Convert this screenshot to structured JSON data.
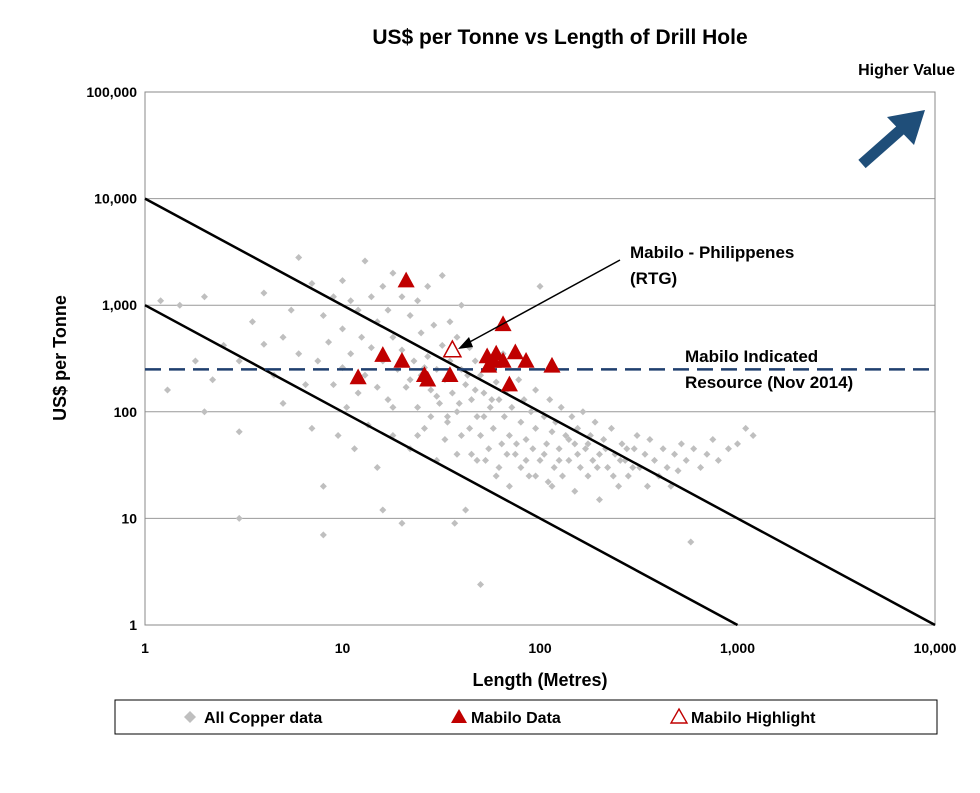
{
  "chart_data": {
    "type": "scatter",
    "title": "US$ per Tonne vs Length of Drill Hole",
    "xlabel": "Length (Metres)",
    "ylabel": "US$ per Tonne",
    "x_scale": "log",
    "y_scale": "log",
    "xlim": [
      1,
      10000
    ],
    "ylim": [
      1,
      100000
    ],
    "x_ticks": [
      "1",
      "10",
      "100",
      "1,000",
      "10,000"
    ],
    "y_ticks": [
      "1",
      "10",
      "100",
      "1,000",
      "10,000",
      "100,000"
    ],
    "grid": "horizontal",
    "legend_position": "bottom",
    "corner_label": "Higher Value",
    "series": [
      {
        "name": "All Copper data",
        "marker": "diamond",
        "color": "#bfbfbf",
        "points": [
          [
            1.2,
            1100
          ],
          [
            1.3,
            160
          ],
          [
            1.5,
            1000
          ],
          [
            1.8,
            300
          ],
          [
            2,
            1200
          ],
          [
            2,
            100
          ],
          [
            2.2,
            200
          ],
          [
            2.5,
            420
          ],
          [
            3,
            300
          ],
          [
            3,
            65
          ],
          [
            3,
            10
          ],
          [
            3.5,
            700
          ],
          [
            4,
            1300
          ],
          [
            4,
            430
          ],
          [
            4.5,
            220
          ],
          [
            5,
            500
          ],
          [
            5,
            120
          ],
          [
            5.5,
            900
          ],
          [
            6,
            2800
          ],
          [
            6,
            350
          ],
          [
            6.5,
            180
          ],
          [
            7,
            1600
          ],
          [
            7,
            70
          ],
          [
            7.5,
            300
          ],
          [
            8,
            800
          ],
          [
            8,
            20
          ],
          [
            8,
            7
          ],
          [
            8.5,
            450
          ],
          [
            9,
            1200
          ],
          [
            9,
            180
          ],
          [
            9.5,
            60
          ],
          [
            10,
            1700
          ],
          [
            10,
            600
          ],
          [
            10,
            260
          ],
          [
            10.5,
            110
          ],
          [
            11,
            1100
          ],
          [
            11,
            350
          ],
          [
            11.5,
            45
          ],
          [
            12,
            900
          ],
          [
            12,
            150
          ],
          [
            12.5,
            500
          ],
          [
            13,
            2600
          ],
          [
            13,
            220
          ],
          [
            13.5,
            75
          ],
          [
            14,
            1200
          ],
          [
            14,
            400
          ],
          [
            15,
            700
          ],
          [
            15,
            170
          ],
          [
            15,
            30
          ],
          [
            16,
            1500
          ],
          [
            16,
            300
          ],
          [
            16,
            12
          ],
          [
            17,
            900
          ],
          [
            17,
            130
          ],
          [
            18,
            2000
          ],
          [
            18,
            500
          ],
          [
            18,
            60
          ],
          [
            19,
            250
          ],
          [
            20,
            1200
          ],
          [
            20,
            380
          ],
          [
            20,
            9
          ],
          [
            21,
            170
          ],
          [
            22,
            800
          ],
          [
            22,
            45
          ],
          [
            23,
            300
          ],
          [
            24,
            1100
          ],
          [
            24,
            110
          ],
          [
            25,
            550
          ],
          [
            25,
            220
          ],
          [
            26,
            70
          ],
          [
            27,
            1500
          ],
          [
            27,
            330
          ],
          [
            28,
            160
          ],
          [
            29,
            650
          ],
          [
            30,
            250
          ],
          [
            30,
            35
          ],
          [
            31,
            120
          ],
          [
            32,
            1900
          ],
          [
            32,
            420
          ],
          [
            33,
            200
          ],
          [
            34,
            80
          ],
          [
            35,
            700
          ],
          [
            35,
            300
          ],
          [
            36,
            150
          ],
          [
            37,
            9
          ],
          [
            38,
            500
          ],
          [
            38,
            100
          ],
          [
            40,
            1000
          ],
          [
            40,
            250
          ],
          [
            40,
            60
          ],
          [
            42,
            180
          ],
          [
            42,
            12
          ],
          [
            44,
            400
          ],
          [
            45,
            130
          ],
          [
            45,
            40
          ],
          [
            47,
            300
          ],
          [
            48,
            90
          ],
          [
            50,
            220
          ],
          [
            50,
            60
          ],
          [
            50,
            2.4
          ],
          [
            52,
            150
          ],
          [
            53,
            35
          ],
          [
            55,
            280
          ],
          [
            56,
            110
          ],
          [
            58,
            70
          ],
          [
            60,
            190
          ],
          [
            60,
            25
          ],
          [
            62,
            130
          ],
          [
            64,
            50
          ],
          [
            65,
            350
          ],
          [
            66,
            90
          ],
          [
            68,
            160
          ],
          [
            70,
            60
          ],
          [
            70,
            20
          ],
          [
            72,
            110
          ],
          [
            75,
            40
          ],
          [
            78,
            200
          ],
          [
            80,
            80
          ],
          [
            80,
            30
          ],
          [
            83,
            130
          ],
          [
            85,
            55
          ],
          [
            88,
            25
          ],
          [
            90,
            100
          ],
          [
            92,
            45
          ],
          [
            95,
            160
          ],
          [
            95,
            70
          ],
          [
            100,
            35
          ],
          [
            100,
            1500
          ],
          [
            105,
            90
          ],
          [
            108,
            50
          ],
          [
            110,
            22
          ],
          [
            112,
            130
          ],
          [
            115,
            65
          ],
          [
            118,
            30
          ],
          [
            120,
            80
          ],
          [
            125,
            45
          ],
          [
            128,
            110
          ],
          [
            130,
            25
          ],
          [
            135,
            60
          ],
          [
            140,
            35
          ],
          [
            145,
            90
          ],
          [
            150,
            50
          ],
          [
            150,
            18
          ],
          [
            155,
            70
          ],
          [
            160,
            30
          ],
          [
            165,
            100
          ],
          [
            170,
            45
          ],
          [
            175,
            25
          ],
          [
            180,
            60
          ],
          [
            185,
            35
          ],
          [
            190,
            80
          ],
          [
            200,
            40
          ],
          [
            200,
            15
          ],
          [
            210,
            55
          ],
          [
            220,
            30
          ],
          [
            230,
            70
          ],
          [
            240,
            40
          ],
          [
            250,
            20
          ],
          [
            260,
            50
          ],
          [
            270,
            35
          ],
          [
            280,
            25
          ],
          [
            300,
            45
          ],
          [
            310,
            60
          ],
          [
            320,
            30
          ],
          [
            340,
            40
          ],
          [
            350,
            20
          ],
          [
            360,
            55
          ],
          [
            380,
            35
          ],
          [
            400,
            25
          ],
          [
            420,
            45
          ],
          [
            440,
            30
          ],
          [
            460,
            20
          ],
          [
            480,
            40
          ],
          [
            500,
            28
          ],
          [
            520,
            50
          ],
          [
            550,
            35
          ],
          [
            580,
            6
          ],
          [
            600,
            45
          ],
          [
            650,
            30
          ],
          [
            700,
            40
          ],
          [
            750,
            55
          ],
          [
            800,
            35
          ],
          [
            900,
            45
          ],
          [
            1000,
            50
          ],
          [
            1100,
            70
          ],
          [
            1200,
            60
          ],
          [
            24,
            60
          ],
          [
            28,
            90
          ],
          [
            33,
            55
          ],
          [
            38,
            40
          ],
          [
            44,
            70
          ],
          [
            48,
            35
          ],
          [
            55,
            45
          ],
          [
            62,
            30
          ],
          [
            68,
            40
          ],
          [
            76,
            50
          ],
          [
            85,
            35
          ],
          [
            95,
            25
          ],
          [
            105,
            40
          ],
          [
            115,
            20
          ],
          [
            125,
            35
          ],
          [
            140,
            55
          ],
          [
            155,
            40
          ],
          [
            175,
            50
          ],
          [
            195,
            30
          ],
          [
            215,
            45
          ],
          [
            235,
            25
          ],
          [
            255,
            35
          ],
          [
            275,
            45
          ],
          [
            295,
            30
          ],
          [
            18,
            110
          ],
          [
            22,
            200
          ],
          [
            26,
            260
          ],
          [
            30,
            140
          ],
          [
            34,
            90
          ],
          [
            39,
            120
          ],
          [
            43,
            220
          ],
          [
            47,
            160
          ],
          [
            52,
            90
          ],
          [
            57,
            130
          ]
        ]
      },
      {
        "name": "Mabilo Data",
        "marker": "triangle",
        "color": "#c00000",
        "points": [
          [
            12,
            210
          ],
          [
            16,
            340
          ],
          [
            20,
            300
          ],
          [
            21,
            1700
          ],
          [
            26,
            220
          ],
          [
            27,
            200
          ],
          [
            35,
            220
          ],
          [
            54,
            330
          ],
          [
            55,
            270
          ],
          [
            58,
            300
          ],
          [
            60,
            350
          ],
          [
            65,
            660
          ],
          [
            65,
            300
          ],
          [
            70,
            180
          ],
          [
            75,
            360
          ],
          [
            85,
            300
          ],
          [
            115,
            270
          ]
        ]
      },
      {
        "name": "Mabilo Highlight",
        "marker": "triangle-open",
        "color": "#c00000",
        "points": [
          [
            36,
            380
          ]
        ]
      }
    ],
    "reference_lines": [
      {
        "name": "upper-diagonal",
        "points": [
          [
            1,
            10000
          ],
          [
            10000,
            1
          ]
        ],
        "color": "#000000"
      },
      {
        "name": "lower-diagonal",
        "points": [
          [
            1,
            1000
          ],
          [
            1000,
            1
          ]
        ],
        "color": "#000000"
      },
      {
        "name": "indicated-resource",
        "y": 250,
        "style": "dashed",
        "color": "#1f3f6e"
      }
    ],
    "annotations": {
      "highlight_label_line1": "Mabilo - Philippenes",
      "highlight_label_line2": "(RTG)",
      "resource_label_line1": "Mabilo Indicated",
      "resource_label_line2": "Resource (Nov 2014)"
    }
  },
  "colors": {
    "grid": "#999999",
    "arrow": "#1f4e79"
  }
}
